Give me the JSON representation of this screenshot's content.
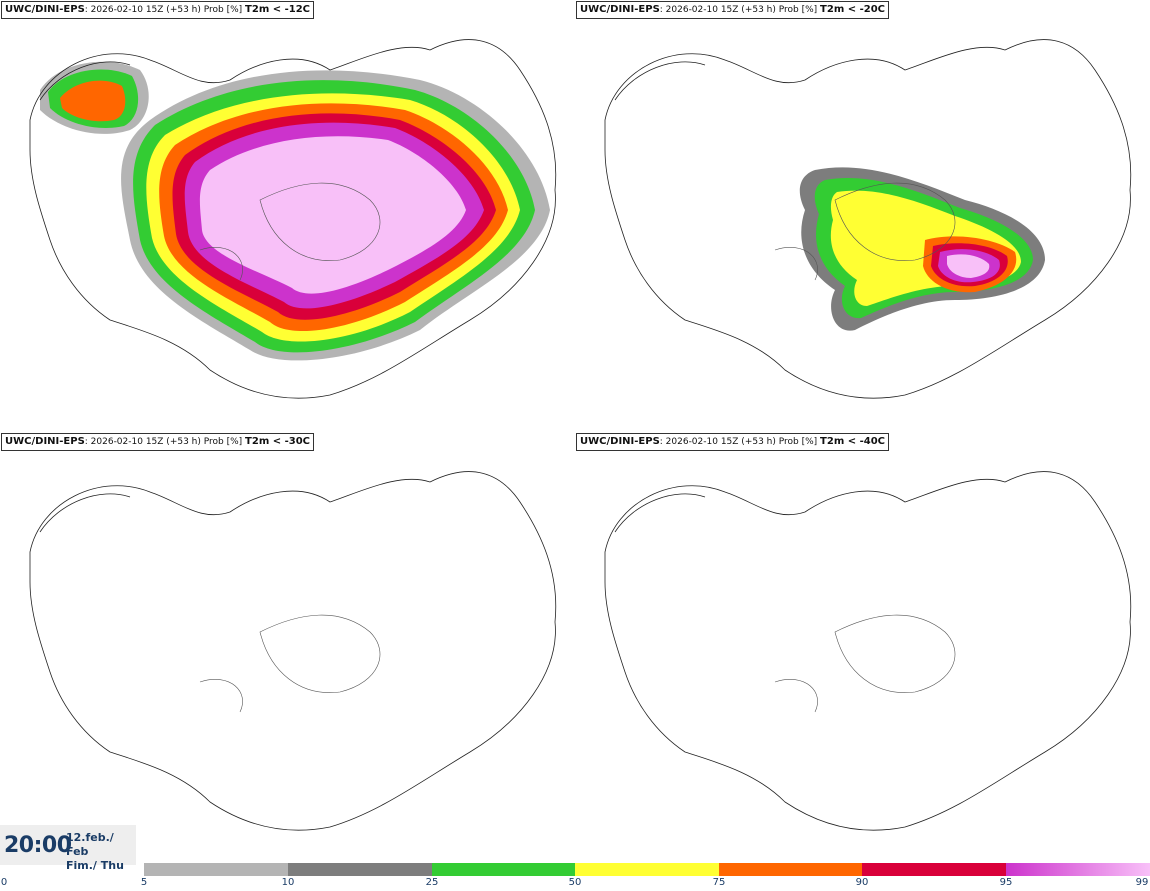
{
  "panels": [
    {
      "model": "UWC/DINI-EPS",
      "meta": ": 2026-02-10 15Z (+53 h) Prob [%]",
      "threshold": "T2m < -12C"
    },
    {
      "model": "UWC/DINI-EPS",
      "meta": ": 2026-02-10 15Z (+53 h) Prob [%]",
      "threshold": "T2m < -20C"
    },
    {
      "model": "UWC/DINI-EPS",
      "meta": ": 2026-02-10 15Z (+53 h) Prob [%]",
      "threshold": "T2m < -30C"
    },
    {
      "model": "UWC/DINI-EPS",
      "meta": ": 2026-02-10 15Z (+53 h) Prob [%]",
      "threshold": "T2m < -40C"
    }
  ],
  "valid_time": {
    "time": "20:00",
    "date_line1": "12.feb./ Feb",
    "date_line2": "Fim./ Thu"
  },
  "legend": {
    "ticks": [
      "0",
      "5",
      "10",
      "25",
      "50",
      "75",
      "90",
      "95",
      "99"
    ],
    "bins": [
      {
        "from": "5",
        "to": "10",
        "color": "#b4b4b4"
      },
      {
        "from": "10",
        "to": "25",
        "color": "#7d7d7d"
      },
      {
        "from": "25",
        "to": "50",
        "color": "#33cc33"
      },
      {
        "from": "50",
        "to": "75",
        "color": "#ffff33"
      },
      {
        "from": "75",
        "to": "90",
        "color": "#ff6600"
      },
      {
        "from": "90",
        "to": "95",
        "color": "#d9003a"
      },
      {
        "from": "95",
        "to": "99",
        "color": "#cc33cc",
        "color_end": "#f8c0f8"
      }
    ]
  },
  "fields": {
    "panel_1_levels": [
      "green",
      "yellow",
      "orange",
      "red",
      "magenta",
      "pink"
    ],
    "panel_2_levels": [
      "green",
      "yellow",
      "orange",
      "red",
      "magenta",
      "pink"
    ],
    "panel_3_levels": [],
    "panel_4_levels": []
  }
}
